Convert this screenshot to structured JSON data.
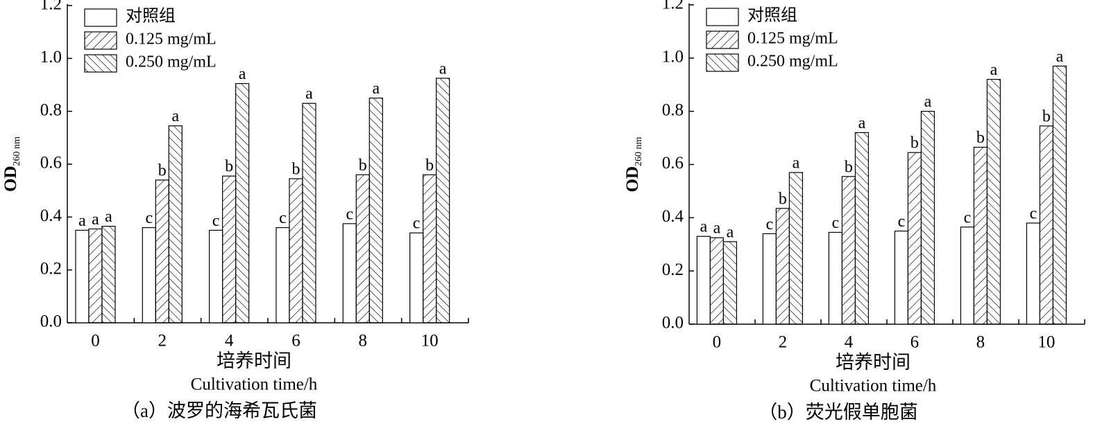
{
  "chart_data": [
    {
      "type": "bar",
      "caption": "（a）波罗的海希瓦氏菌",
      "x_label": "培养时间",
      "x_label_en": "Cultivation time/h",
      "y_label": "OD",
      "y_label_sub": "260 nm",
      "categories": [
        "0",
        "2",
        "4",
        "6",
        "8",
        "10"
      ],
      "series": [
        {
          "name": "对照组",
          "color": "#000000",
          "hatch": "none",
          "values": [
            0.35,
            0.36,
            0.35,
            0.36,
            0.375,
            0.34
          ],
          "letters": [
            "a",
            "c",
            "c",
            "c",
            "c",
            "c"
          ]
        },
        {
          "name": "0.125 mg/mL",
          "color": "#000000",
          "hatch": "forward",
          "values": [
            0.355,
            0.54,
            0.555,
            0.545,
            0.56,
            0.56
          ],
          "letters": [
            "a",
            "b",
            "b",
            "b",
            "b",
            "b"
          ]
        },
        {
          "name": "0.250 mg/mL",
          "color": "#000000",
          "hatch": "back",
          "values": [
            0.365,
            0.745,
            0.905,
            0.83,
            0.85,
            0.925
          ],
          "letters": [
            "a",
            "a",
            "a",
            "a",
            "a",
            "a"
          ]
        }
      ],
      "ylim": [
        0,
        1.2
      ],
      "yticks": [
        {
          "value": 0,
          "label": "0.0"
        },
        {
          "value": 0.2,
          "label": "0.2"
        },
        {
          "value": 0.4,
          "label": "0.4"
        },
        {
          "value": 0.6,
          "label": "0.6"
        },
        {
          "value": 0.8,
          "label": "0.8"
        },
        {
          "value": 1.0,
          "label": "1.0"
        },
        {
          "value": 1.2,
          "label": "1.2"
        }
      ],
      "legend": "upper-left"
    },
    {
      "type": "bar",
      "caption": "（b）荧光假单胞菌",
      "x_label": "培养时间",
      "x_label_en": "Cultivation time/h",
      "y_label": "OD",
      "y_label_sub": "260 nm",
      "categories": [
        "0",
        "2",
        "4",
        "6",
        "8",
        "10"
      ],
      "series": [
        {
          "name": "对照组",
          "color": "#000000",
          "hatch": "none",
          "values": [
            0.33,
            0.34,
            0.345,
            0.35,
            0.365,
            0.38
          ],
          "letters": [
            "a",
            "c",
            "c",
            "c",
            "c",
            "c"
          ]
        },
        {
          "name": "0.125 mg/mL",
          "color": "#000000",
          "hatch": "forward",
          "values": [
            0.325,
            0.435,
            0.555,
            0.645,
            0.665,
            0.745
          ],
          "letters": [
            "a",
            "b",
            "b",
            "b",
            "b",
            "b"
          ]
        },
        {
          "name": "0.250 mg/mL",
          "color": "#000000",
          "hatch": "back",
          "values": [
            0.31,
            0.57,
            0.72,
            0.8,
            0.92,
            0.97
          ],
          "letters": [
            "a",
            "a",
            "a",
            "a",
            "a",
            "a"
          ]
        }
      ],
      "ylim": [
        0,
        1.2
      ],
      "yticks": [
        {
          "value": 0,
          "label": "0.0"
        },
        {
          "value": 0.2,
          "label": "0.2"
        },
        {
          "value": 0.4,
          "label": "0.4"
        },
        {
          "value": 0.6,
          "label": "0.6"
        },
        {
          "value": 0.8,
          "label": "0.8"
        },
        {
          "value": 1.0,
          "label": "1.0"
        },
        {
          "value": 1.2,
          "label": "1.2"
        }
      ],
      "legend": "upper-left"
    }
  ]
}
